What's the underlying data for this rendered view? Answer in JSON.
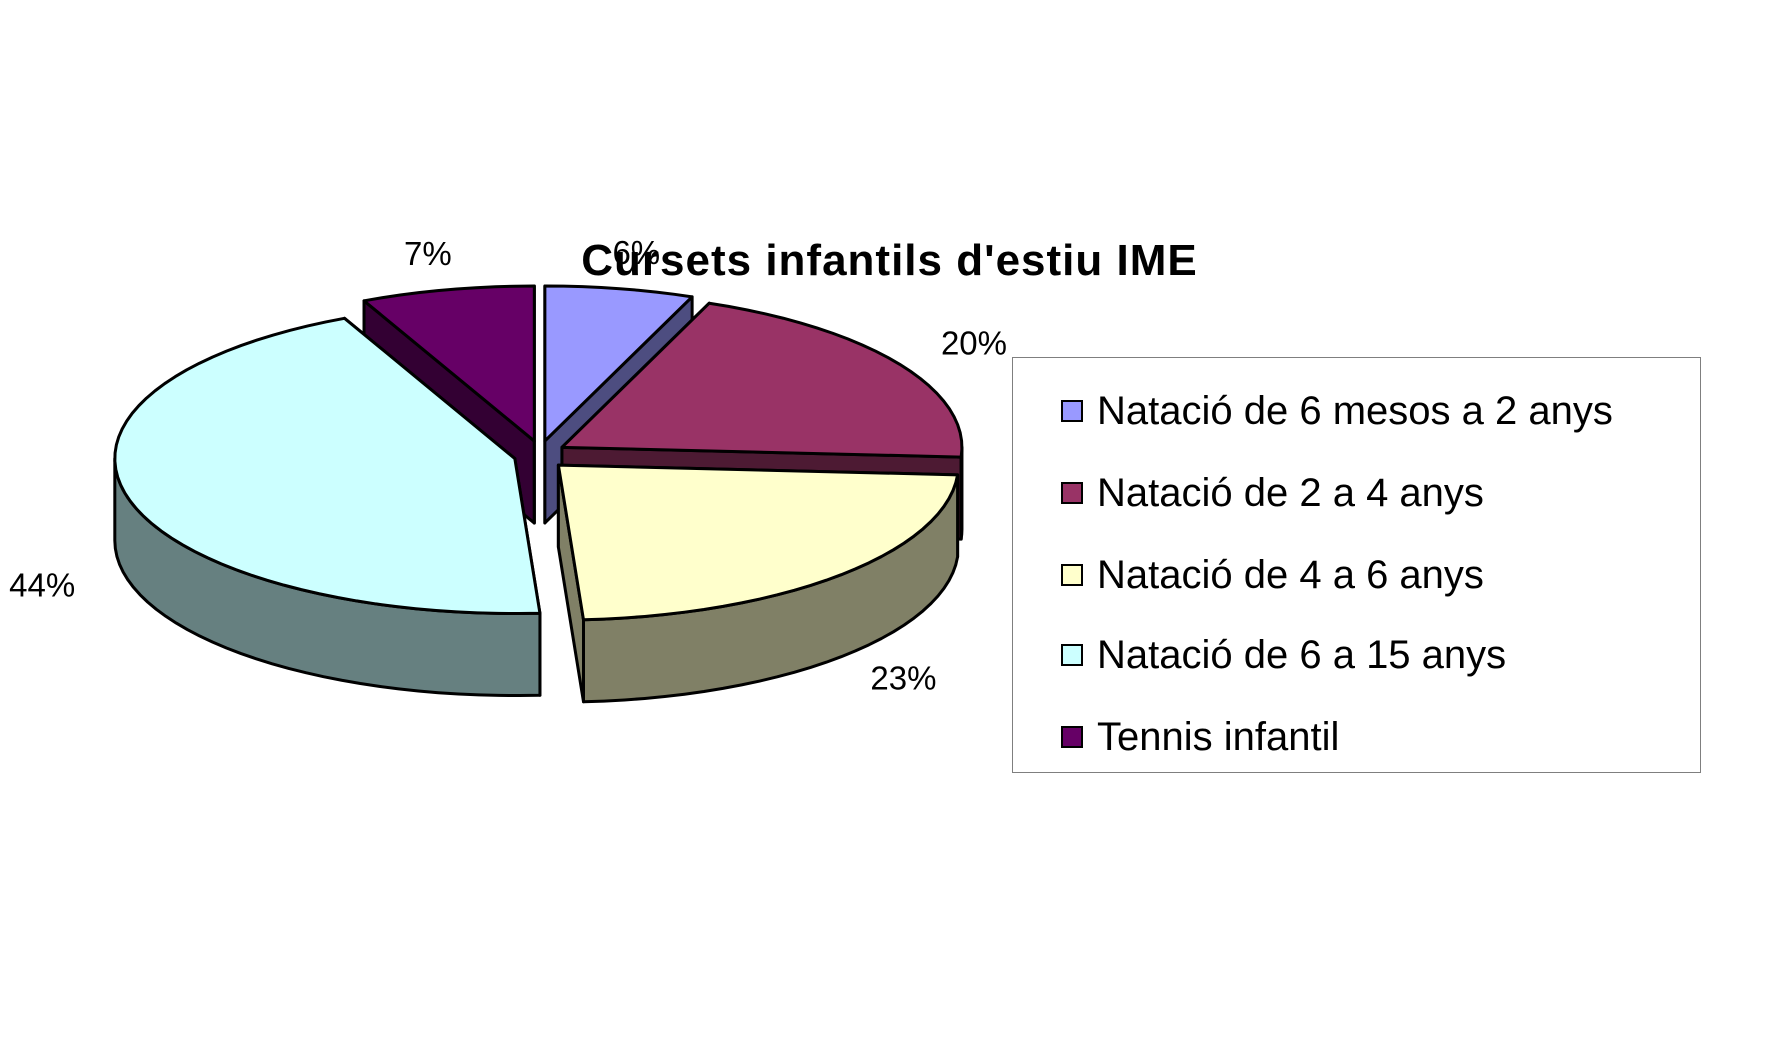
{
  "chart_data": {
    "type": "pie",
    "title": "Cursets infantils d'estiu IME",
    "is_3d": true,
    "exploded": true,
    "legend_position": "right",
    "categories": [
      "Natació de 6 mesos a 2 anys",
      "Natació de 2 a 4 anys",
      "Natació de 4 a 6 anys",
      "Natació de 6 a 15 anys",
      "Tennis infantil"
    ],
    "values": [
      6,
      20,
      23,
      44,
      7
    ],
    "data_labels": [
      "6%",
      "20%",
      "23%",
      "44%",
      "7%"
    ],
    "colors": [
      "#9999ff",
      "#993366",
      "#ffffcc",
      "#ccffff",
      "#660066"
    ],
    "side_colors": [
      "#4d4d80",
      "#4d1a33",
      "#808066",
      "#668080",
      "#330033"
    ]
  }
}
